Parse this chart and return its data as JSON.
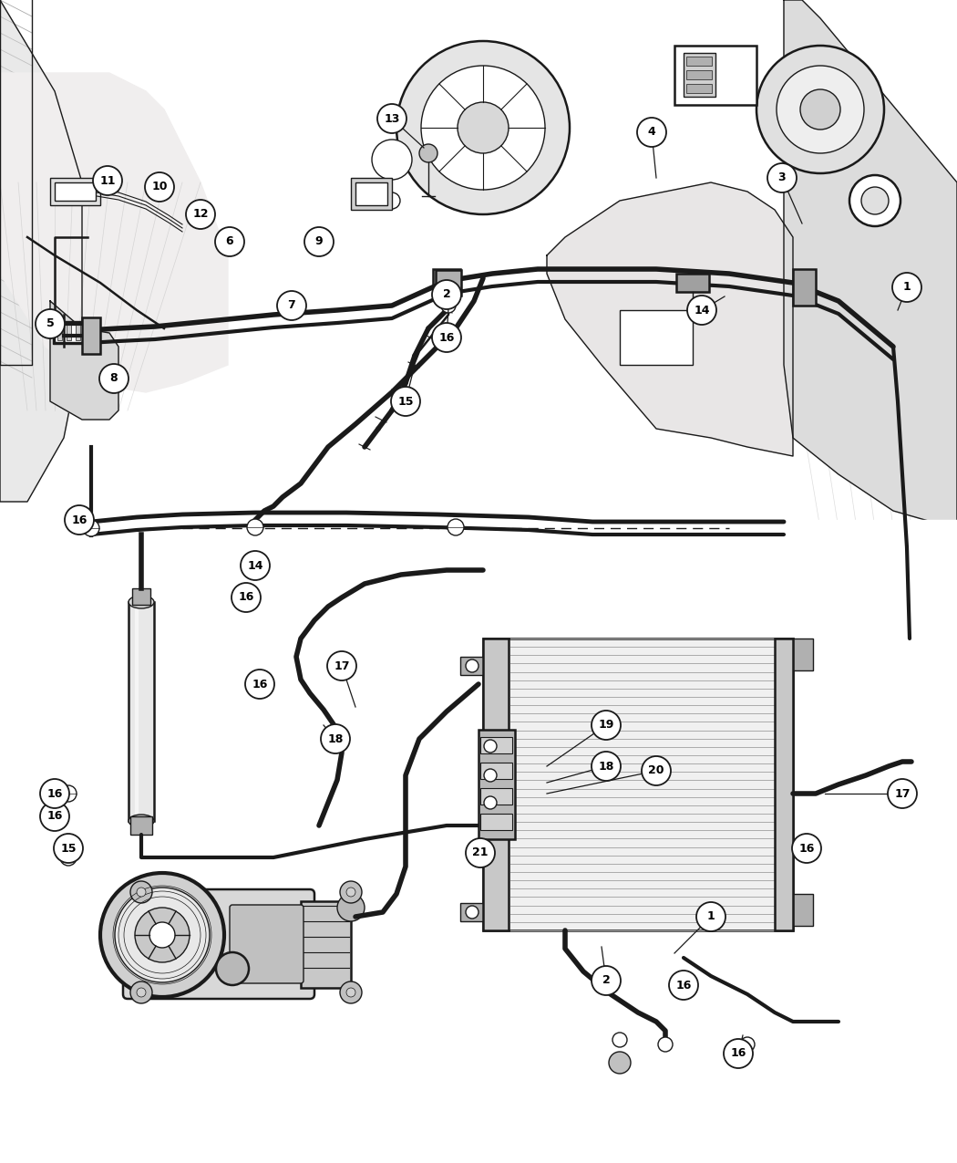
{
  "fig_width": 10.5,
  "fig_height": 12.75,
  "dpi": 100,
  "bg_color": "#ffffff",
  "line_color": "#1a1a1a",
  "gray_light": "#e8e8e8",
  "gray_mid": "#c0c0c0",
  "gray_dark": "#888888"
}
